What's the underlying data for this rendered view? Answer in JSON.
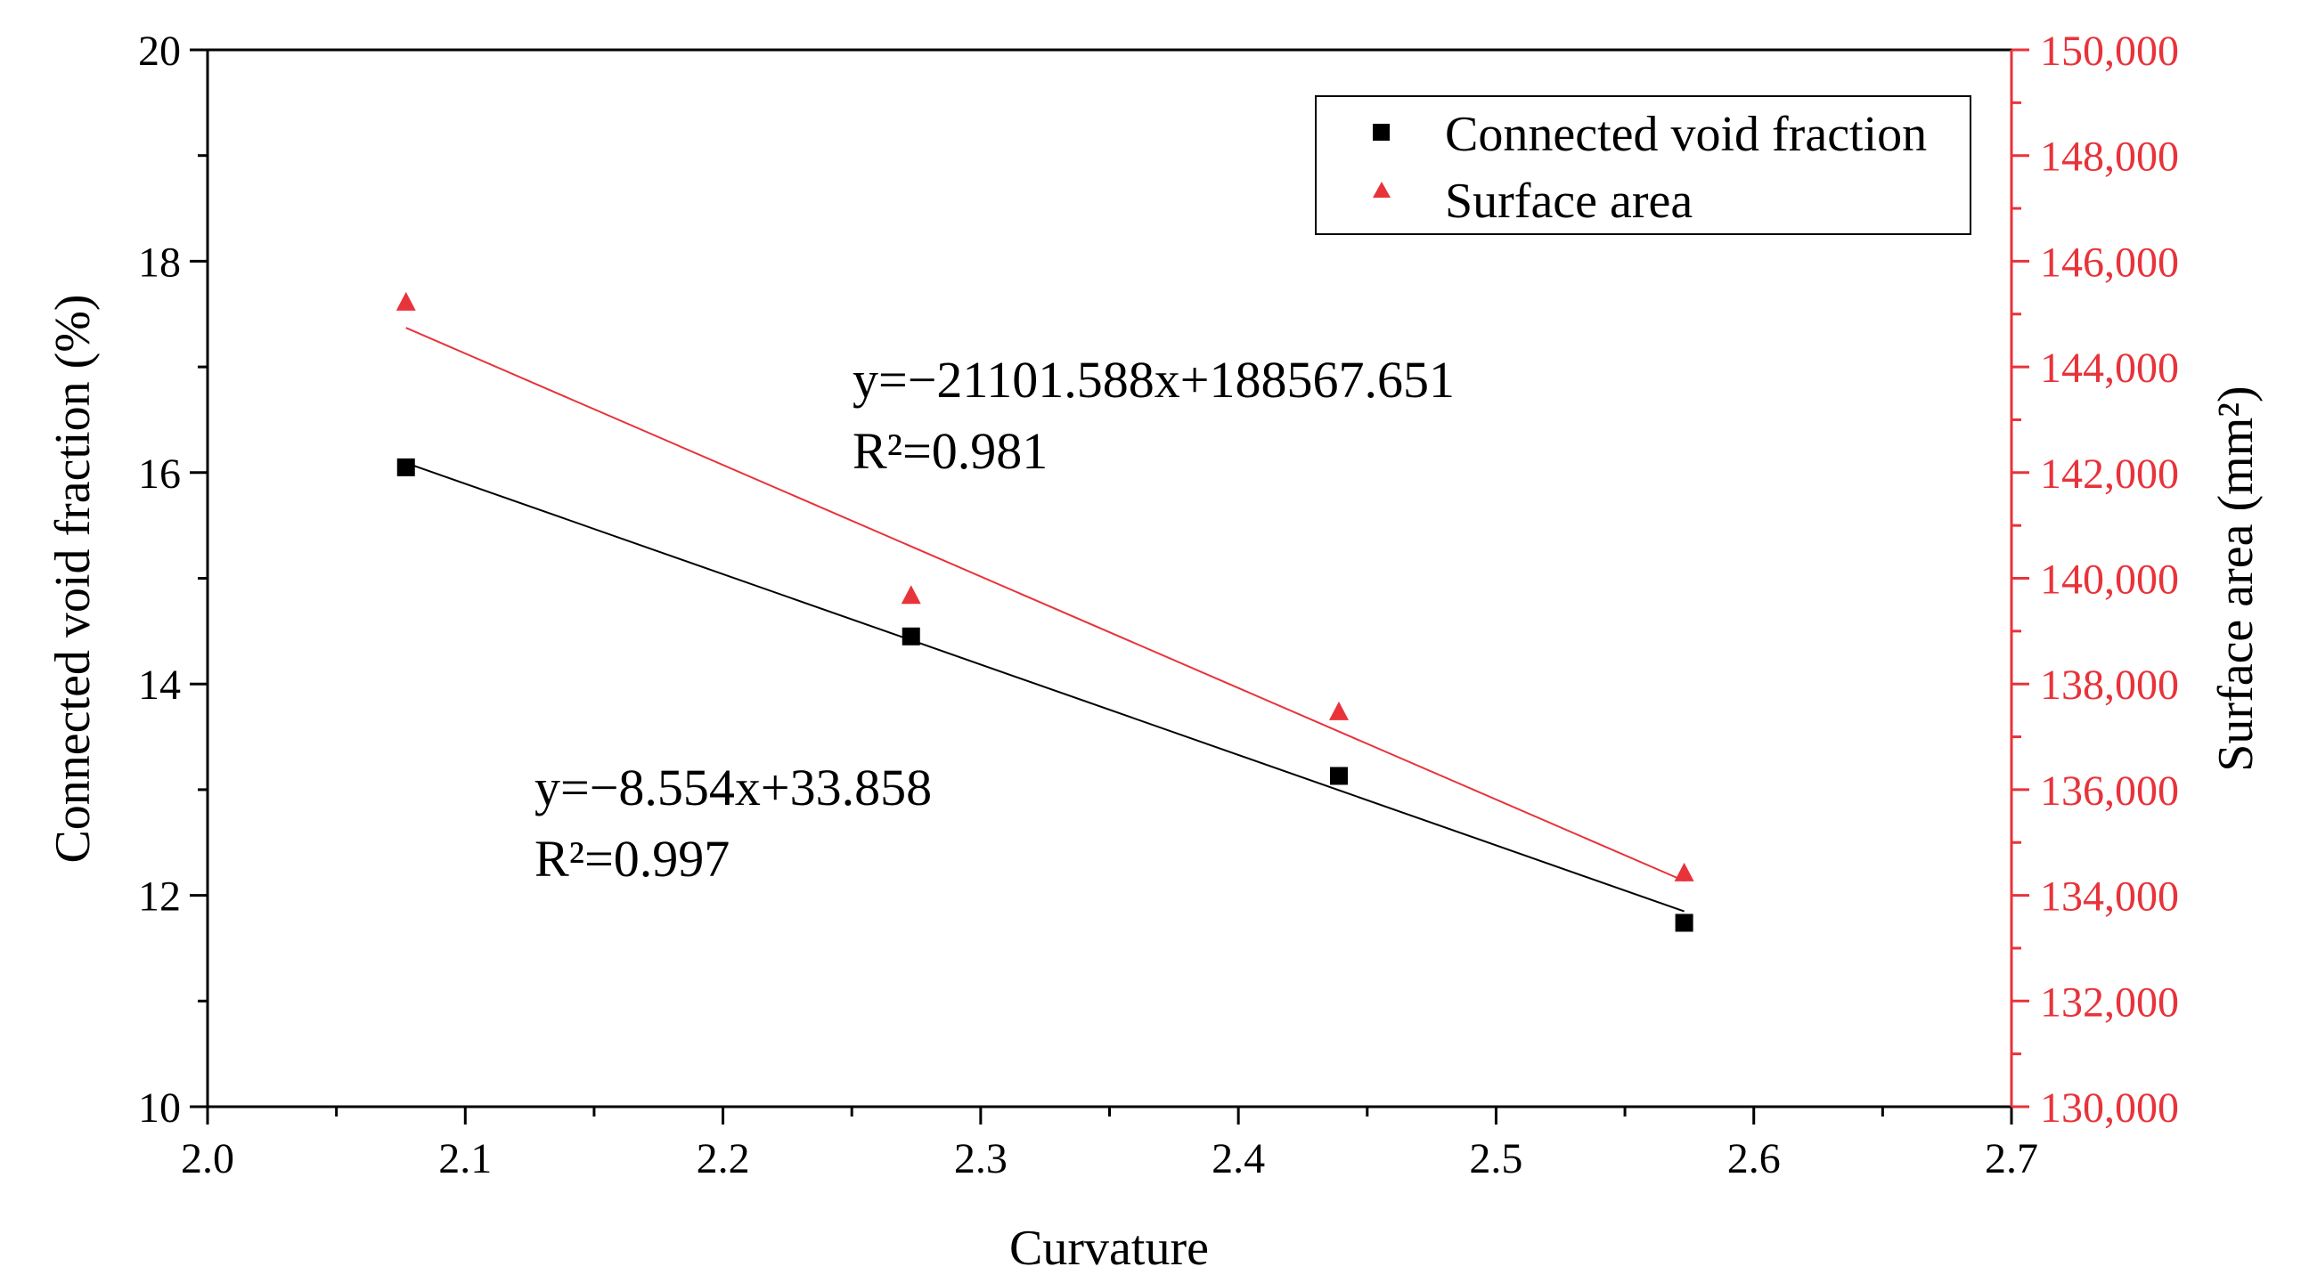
{
  "chart_data": {
    "type": "scatter",
    "xlabel": "Curvature",
    "ylabel_left": "Connected void fraction (%)",
    "ylabel_right": "Surface area (mm²)",
    "xlim": [
      2.0,
      2.7
    ],
    "ylim_left": [
      10,
      20
    ],
    "ylim_right": [
      130000,
      150000
    ],
    "x_ticks": [
      "2.0",
      "2.1",
      "2.2",
      "2.3",
      "2.4",
      "2.5",
      "2.6",
      "2.7"
    ],
    "y_left_ticks": [
      "10",
      "12",
      "14",
      "16",
      "18",
      "20"
    ],
    "y_right_ticks": [
      "130,000",
      "132,000",
      "134,000",
      "136,000",
      "138,000",
      "140,000",
      "142,000",
      "144,000",
      "146,000",
      "148,000",
      "150,000"
    ],
    "series": [
      {
        "name": "Connected void fraction",
        "axis": "left",
        "marker": "square",
        "color": "#000000",
        "x": [
          2.077,
          2.273,
          2.439,
          2.573
        ],
        "y": [
          16.05,
          14.45,
          13.13,
          11.74
        ],
        "fit": {
          "slope": -8.554,
          "intercept": 33.858,
          "equation": "y=−8.554x+33.858",
          "r2": "R²=0.997"
        }
      },
      {
        "name": "Surface area",
        "axis": "right",
        "marker": "triangle",
        "color": "#e8333a",
        "x": [
          2.077,
          2.273,
          2.439,
          2.573
        ],
        "y": [
          145200,
          139650,
          137450,
          134400
        ],
        "fit": {
          "slope": -21101.588,
          "intercept": 188567.651,
          "equation": "y=−21101.588x+188567.651",
          "r2": "R²=0.981"
        }
      }
    ],
    "legend": {
      "position": "top-right",
      "entries": [
        "Connected void fraction",
        "Surface area"
      ]
    },
    "grid": false
  }
}
